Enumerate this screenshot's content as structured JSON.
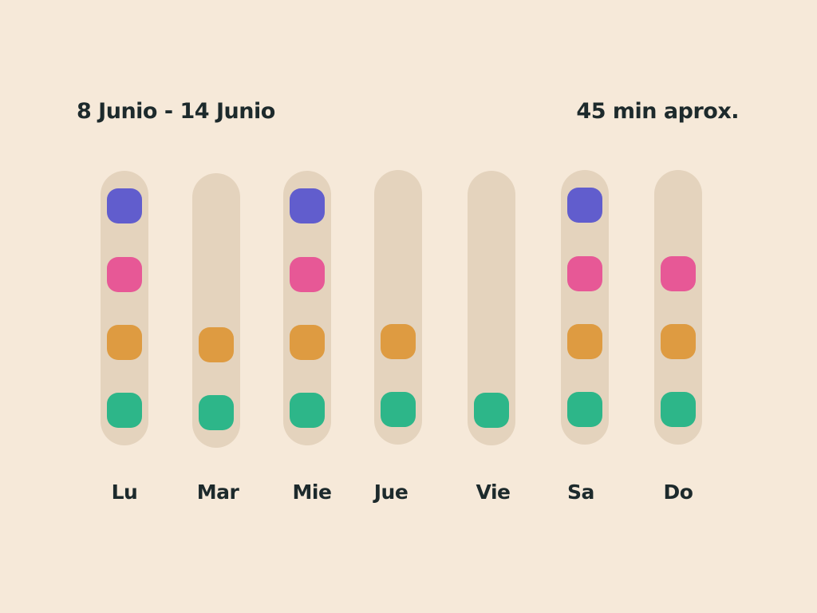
{
  "header": {
    "date_range": "8 Junio - 14 Junio",
    "duration": "45 min aprox."
  },
  "activity_colors": {
    "purple": "#615dcd",
    "pink": "#e75896",
    "orange": "#de9b41",
    "green": "#2db689"
  },
  "colors": {
    "background": "#f6e9d9",
    "column": "#e4d3bd",
    "text": "#1d2a2c"
  },
  "days": [
    {
      "label": "Lu",
      "activities": {
        "purple": true,
        "pink": true,
        "orange": true,
        "green": true
      }
    },
    {
      "label": "Mar",
      "activities": {
        "purple": false,
        "pink": false,
        "orange": true,
        "green": true
      }
    },
    {
      "label": "Mie",
      "activities": {
        "purple": true,
        "pink": true,
        "orange": true,
        "green": true
      }
    },
    {
      "label": "Jue",
      "activities": {
        "purple": false,
        "pink": false,
        "orange": true,
        "green": true
      }
    },
    {
      "label": "Vie",
      "activities": {
        "purple": false,
        "pink": false,
        "orange": false,
        "green": true
      }
    },
    {
      "label": "Sa",
      "activities": {
        "purple": true,
        "pink": true,
        "orange": true,
        "green": true
      }
    },
    {
      "label": "Do",
      "activities": {
        "purple": false,
        "pink": true,
        "orange": true,
        "green": true
      }
    }
  ]
}
